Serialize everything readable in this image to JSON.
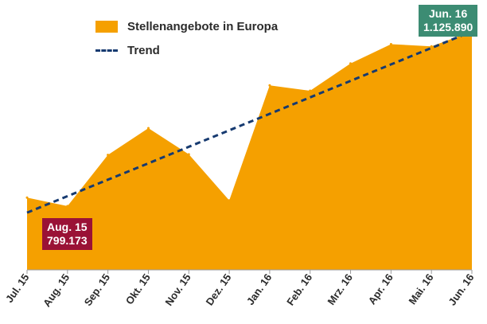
{
  "chart_data": {
    "type": "area",
    "categories": [
      "Jul. 15",
      "Aug. 15",
      "Sep. 15",
      "Okt. 15",
      "Nov. 15",
      "Dez. 15",
      "Jan. 16",
      "Feb. 16",
      "Mrz. 16",
      "Apr. 16",
      "Mai. 16",
      "Jun. 16"
    ],
    "series": [
      {
        "name": "Stellenangebote in Europa",
        "values": [
          815000,
          799173,
          895000,
          945000,
          896000,
          810000,
          1025000,
          1015000,
          1066000,
          1102000,
          1098000,
          1125890
        ],
        "color": "#f5a000"
      },
      {
        "name": "Trend",
        "style": "dashed",
        "values": [
          787000,
          817800,
          848600,
          879400,
          910200,
          941000,
          971800,
          1002600,
          1033400,
          1064200,
          1095000,
          1125800
        ],
        "color": "#163a70"
      }
    ],
    "ylim": [
      680000,
      1140000
    ],
    "grid": false,
    "legend": "top-left",
    "annotations": [
      {
        "category": "Aug. 15",
        "line1": "Aug. 15",
        "line2": "799.173",
        "color": "#9a1236"
      },
      {
        "category": "Jun. 16",
        "line1": "Jun. 16",
        "line2": "1.125.890",
        "color": "#3c8c73"
      }
    ]
  }
}
